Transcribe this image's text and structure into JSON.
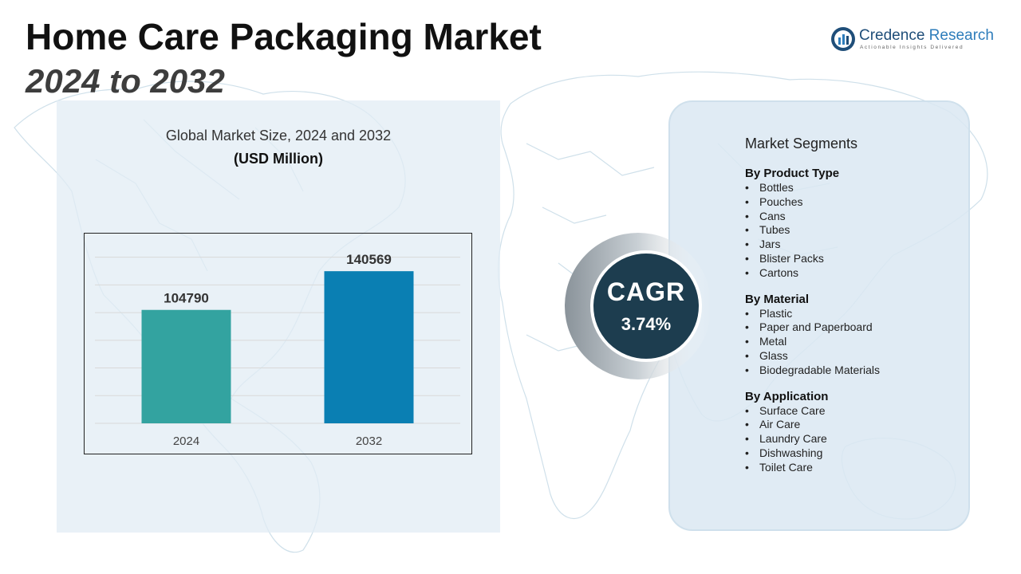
{
  "header": {
    "title": "Home Care Packaging Market",
    "subtitle": "2024 to 2032"
  },
  "logo": {
    "name_part1": "Credence",
    "name_part2": "Research",
    "tagline": "Actionable Insights Delivered"
  },
  "chart_panel": {
    "title": "Global Market Size, 2024 and 2032",
    "unit": "(USD Million)"
  },
  "chart_data": {
    "type": "bar",
    "title": "Global Market Size, 2024 and 2032",
    "subtitle": "(USD Million)",
    "categories": [
      "2024",
      "2032"
    ],
    "values": [
      104790,
      140569
    ],
    "bar_colors": [
      "#33a3a0",
      "#0a7fb3"
    ],
    "ylim": [
      0,
      165000
    ],
    "grid": true,
    "xlabel": "",
    "ylabel": ""
  },
  "cagr": {
    "label": "CAGR",
    "value": "3.74%"
  },
  "segments": {
    "heading": "Market Segments",
    "groups": [
      {
        "title": "By Product Type",
        "items": [
          "Bottles",
          "Pouches",
          "Cans",
          "Tubes",
          "Jars",
          "Blister Packs",
          "Cartons"
        ]
      },
      {
        "title": "By Material",
        "items": [
          "Plastic",
          "Paper and Paperboard",
          "Metal",
          "Glass",
          "Biodegradable Materials"
        ]
      },
      {
        "title": "By Application",
        "items": [
          "Surface Care",
          "Air Care",
          "Laundry Care",
          "Dishwashing",
          "Toilet Care"
        ]
      }
    ]
  },
  "colors": {
    "panel_bg": "#e2ecf4",
    "cagr_circle": "#1d3d4f",
    "brand": "#1f4e79"
  }
}
